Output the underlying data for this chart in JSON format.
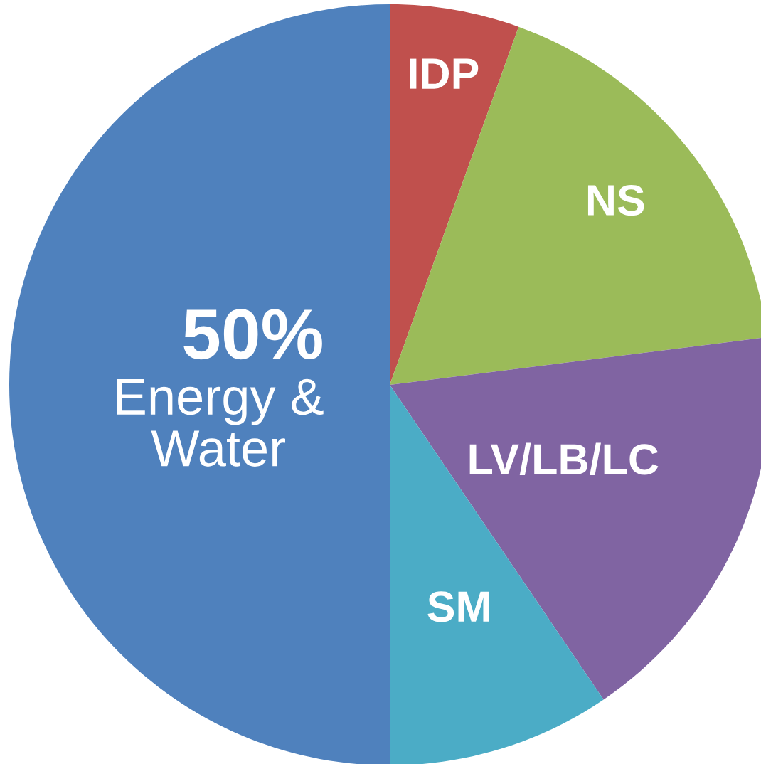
{
  "chart_data": {
    "type": "pie",
    "categories": [
      "Energy &\nWater",
      "IDP",
      "NS",
      "LV/LB/LC",
      "SM"
    ],
    "values": [
      50,
      5.5,
      17.5,
      17.5,
      9.5
    ],
    "value_labels": [
      "50%",
      null,
      null,
      null,
      null
    ],
    "colors": [
      "#4f81bd",
      "#c0504d",
      "#9bbb59",
      "#8064a2",
      "#4bacc6"
    ]
  }
}
